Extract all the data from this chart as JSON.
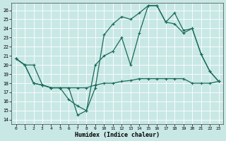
{
  "xlabel": "Humidex (Indice chaleur)",
  "xlim": [
    -0.5,
    23.5
  ],
  "ylim": [
    13.5,
    26.8
  ],
  "yticks": [
    14,
    15,
    16,
    17,
    18,
    19,
    20,
    21,
    22,
    23,
    24,
    25,
    26
  ],
  "xticks": [
    0,
    1,
    2,
    3,
    4,
    5,
    6,
    7,
    8,
    9,
    10,
    11,
    12,
    13,
    14,
    15,
    16,
    17,
    18,
    19,
    20,
    21,
    22,
    23
  ],
  "bg_color": "#c8e8e5",
  "grid_color": "#ffffff",
  "line_color": "#1a6b5a",
  "line1_x": [
    0,
    1,
    2,
    3,
    4,
    5,
    6,
    7,
    8,
    9,
    10,
    11,
    12,
    13,
    14,
    15,
    16,
    17,
    18,
    19,
    20,
    21,
    22,
    23
  ],
  "line1_y": [
    20.7,
    20.0,
    20.0,
    17.8,
    17.5,
    17.5,
    16.2,
    15.5,
    15.0,
    17.5,
    23.3,
    24.5,
    25.3,
    25.0,
    25.7,
    26.5,
    26.5,
    24.7,
    25.7,
    23.8,
    24.0,
    21.2,
    19.3,
    18.2
  ],
  "line2_x": [
    0,
    1,
    2,
    3,
    4,
    5,
    6,
    7,
    8,
    9,
    10,
    11,
    12,
    13,
    14,
    15,
    16,
    17,
    18,
    19,
    20,
    21,
    22,
    23
  ],
  "line2_y": [
    20.7,
    20.0,
    18.0,
    17.8,
    17.5,
    17.5,
    17.5,
    14.5,
    15.0,
    20.0,
    21.0,
    21.5,
    23.0,
    20.0,
    23.5,
    26.5,
    26.5,
    24.7,
    24.5,
    23.5,
    24.0,
    21.2,
    19.3,
    18.2
  ],
  "line3_x": [
    0,
    1,
    2,
    3,
    4,
    5,
    6,
    7,
    8,
    9,
    10,
    11,
    12,
    13,
    14,
    15,
    16,
    17,
    18,
    19,
    20,
    21,
    22,
    23
  ],
  "line3_y": [
    20.7,
    20.0,
    18.0,
    17.8,
    17.5,
    17.5,
    17.5,
    17.5,
    17.5,
    17.8,
    18.0,
    18.0,
    18.2,
    18.3,
    18.5,
    18.5,
    18.5,
    18.5,
    18.5,
    18.5,
    18.0,
    18.0,
    18.0,
    18.2
  ]
}
